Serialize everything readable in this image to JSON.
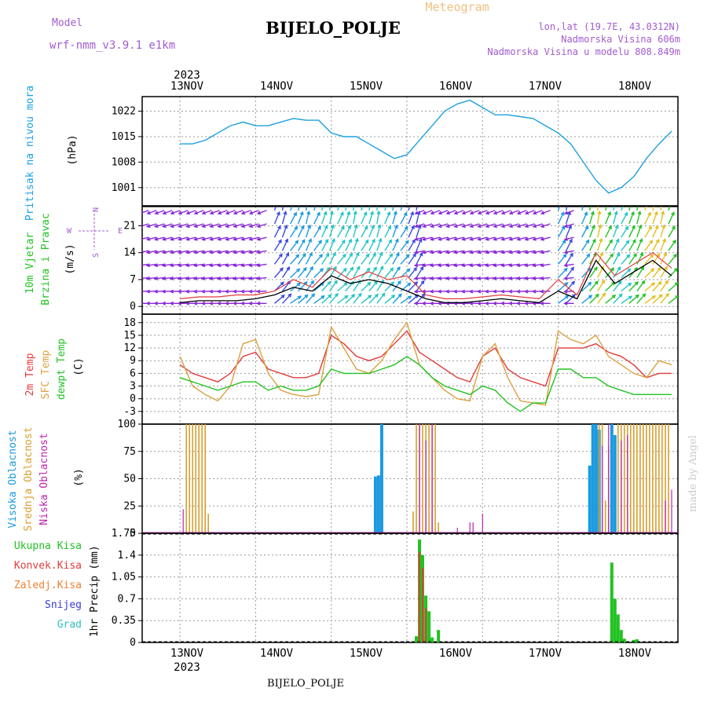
{
  "header": {
    "model_label": "Model",
    "model_name": "wrf-nmm_v3.9.1 e1km",
    "title": "BIJELO_POLJE",
    "kind": "Meteogram",
    "lonlat": "lon,lat (19.7E, 43.0312N)",
    "elevation": "Nadmorska Visina 606m",
    "model_elevation": "Nadmorska Visina u modelu 808.849m",
    "footer_title": "BIJELO_POLJE",
    "watermark": "made by Angel"
  },
  "colors": {
    "model_label": "#a25ccf",
    "title": "#000000",
    "kind": "#f0c080",
    "pressure": "#1ba0e0",
    "temp2m": "#e23b3b",
    "sfc": "#dca040",
    "dew": "#22c222",
    "high_cloud": "#1a9ae0",
    "mid_cloud": "#d8a030",
    "low_cloud": "#c020b0",
    "total_rain": "#22c222",
    "conv_rain": "#e23b3b",
    "frz_rain": "#f08030",
    "snow": "#3a3ae0",
    "graupel": "#30c0c0",
    "wind_purple": "#8a28d8"
  },
  "time_axis": {
    "year": "2023",
    "days": [
      "13NOV",
      "14NOV",
      "15NOV",
      "16NOV",
      "17NOV",
      "18NOV"
    ]
  },
  "chart_data": [
    {
      "type": "line",
      "panel": "pressure",
      "ylabel_main": "Pritisak na nivou mora",
      "unit": "(hPa)",
      "ylim": [
        996,
        1026
      ],
      "yticks": [
        "1001",
        "1008",
        "1015",
        "1022"
      ],
      "x_hours": [
        0,
        4,
        8,
        12,
        16,
        20,
        24,
        28,
        32,
        36,
        40,
        44,
        48,
        52,
        56,
        60,
        64,
        68,
        72,
        76,
        80,
        84,
        88,
        92,
        96,
        100,
        104,
        108,
        112,
        116,
        120,
        124,
        128,
        132,
        136,
        140,
        144,
        148,
        152,
        156
      ],
      "values": [
        1013,
        1013,
        1014,
        1016,
        1018,
        1019,
        1018,
        1018,
        1019,
        1020,
        1019.5,
        1019.5,
        1016,
        1015,
        1015,
        1013,
        1011,
        1009,
        1010,
        1014,
        1018,
        1022,
        1024,
        1025,
        1023,
        1021,
        1021,
        1020.5,
        1020,
        1018,
        1016,
        1013,
        1008,
        1003,
        999.5,
        1001,
        1004,
        1009,
        1013,
        1016.5
      ]
    },
    {
      "type": "vector",
      "panel": "wind",
      "ylabel_main": "10m Vjetar",
      "ylabel_sub": "Brzina i Pravac",
      "unit": "(m/s)",
      "compass": {
        "north": "N",
        "west": "W",
        "east": "E",
        "south": "S"
      },
      "ylim": [
        -2,
        26
      ],
      "yticks": [
        "0",
        "7",
        "14",
        "21"
      ],
      "x_hours": [
        0,
        6,
        12,
        18,
        24,
        30,
        36,
        42,
        48,
        54,
        60,
        66,
        72,
        78,
        84,
        90,
        96,
        102,
        108,
        114,
        120,
        126,
        132,
        138,
        144,
        150,
        156
      ],
      "speed": [
        1,
        1.5,
        1.5,
        1.5,
        2,
        3,
        5,
        4,
        8,
        6,
        7,
        6,
        4,
        2,
        1,
        1,
        1.5,
        2,
        1.5,
        1,
        4,
        2,
        12,
        6,
        9,
        12,
        8
      ],
      "gust": [
        2,
        2.5,
        2.5,
        3,
        3,
        4,
        7,
        5,
        10,
        7,
        9,
        7,
        8,
        3,
        2,
        2,
        2.5,
        3,
        2.5,
        2,
        7,
        3,
        14,
        8,
        11,
        14,
        10
      ]
    },
    {
      "type": "line",
      "panel": "temperature",
      "ylabel_series": [
        "2m Temp",
        "SFC Temp",
        "dewpt Temp"
      ],
      "unit": "(C)",
      "ylim": [
        -6,
        20
      ],
      "yticks": [
        "-3",
        "0",
        "3",
        "6",
        "9",
        "12",
        "15",
        "18"
      ],
      "x_hours": [
        0,
        4,
        8,
        12,
        16,
        20,
        24,
        28,
        32,
        36,
        40,
        44,
        48,
        52,
        56,
        60,
        64,
        68,
        72,
        76,
        80,
        84,
        88,
        92,
        96,
        100,
        104,
        108,
        112,
        116,
        120,
        124,
        128,
        132,
        136,
        140,
        144,
        148,
        152,
        156
      ],
      "series": [
        {
          "name": "2m Temp",
          "values": [
            8,
            6,
            5,
            4,
            6,
            10,
            11,
            7,
            6,
            5,
            5,
            6,
            15,
            13,
            10,
            9,
            10,
            13,
            16,
            11,
            9,
            7,
            5,
            4,
            10,
            12,
            7,
            5,
            4,
            3,
            12,
            12,
            12,
            13,
            11,
            10,
            8,
            5,
            6,
            6
          ]
        },
        {
          "name": "SFC Temp",
          "values": [
            10,
            3,
            1,
            -0.5,
            3,
            13,
            14,
            6,
            2,
            1,
            0.5,
            1,
            17,
            12,
            7,
            6,
            9,
            14,
            18,
            8,
            5,
            2,
            0,
            -0.5,
            10,
            13,
            5,
            -0.5,
            -1,
            -1.5,
            16,
            14,
            13,
            15,
            10,
            8,
            6,
            5,
            9,
            8
          ]
        },
        {
          "name": "dewpt Temp",
          "values": [
            5,
            4,
            3,
            2,
            3,
            4,
            4,
            2,
            3,
            2,
            2,
            3,
            7,
            6,
            6,
            6,
            7,
            8,
            10,
            8,
            5,
            3,
            2,
            1,
            3,
            2,
            -1,
            -3,
            -1,
            -1,
            7,
            7,
            5,
            5,
            3,
            2,
            1,
            1,
            1,
            1
          ]
        }
      ]
    },
    {
      "type": "bar",
      "panel": "clouds",
      "ylabel_series": [
        "Visoka Oblacnost",
        "Srednja Oblacnost",
        "Niska Oblacnost"
      ],
      "unit": "(%)",
      "ylim": [
        0,
        100
      ],
      "yticks": [
        "0",
        "25",
        "50",
        "75",
        "100"
      ],
      "series": [
        {
          "name": "Visoka Oblacnost",
          "x_hours": [
            62,
            63,
            64,
            130,
            131,
            132,
            133,
            137,
            138
          ],
          "values": [
            52,
            53,
            100,
            62,
            100,
            100,
            95,
            100,
            90
          ]
        },
        {
          "name": "Srednja Oblacnost",
          "x_hours": [
            2,
            3,
            4,
            5,
            6,
            7,
            8,
            9,
            74,
            75,
            76,
            77,
            78,
            79,
            80,
            81,
            82,
            133,
            134,
            135,
            136,
            139,
            140,
            141,
            142,
            143,
            144,
            145,
            146,
            147,
            148,
            149,
            150,
            151,
            152,
            153,
            154,
            155
          ],
          "values": [
            100,
            100,
            100,
            100,
            100,
            100,
            100,
            18,
            20,
            100,
            100,
            100,
            100,
            100,
            100,
            100,
            10,
            100,
            100,
            30,
            80,
            100,
            100,
            100,
            100,
            100,
            100,
            100,
            100,
            100,
            100,
            100,
            100,
            100,
            100,
            100,
            100,
            100
          ]
        },
        {
          "name": "Niska Oblacnost",
          "x_hours": [
            1,
            76,
            78,
            80,
            88,
            92,
            93,
            96,
            134,
            136,
            140,
            142,
            154,
            156
          ],
          "values": [
            22,
            100,
            85,
            100,
            5,
            10,
            10,
            18,
            80,
            100,
            85,
            90,
            30,
            40
          ]
        }
      ]
    },
    {
      "type": "bar",
      "panel": "precip",
      "legend": [
        "Ukupna Kisa",
        "Konvek.Kisa",
        "Zaledj.Kisa",
        "Snijeg",
        "Grad"
      ],
      "ylabel_sub": "1hr Precip",
      "unit": "(mm)",
      "ylim": [
        0,
        1.75
      ],
      "yticks": [
        "0",
        "0.35",
        "0.7",
        "1.05",
        "1.4",
        "1.75"
      ],
      "series": [
        {
          "name": "Ukupna Kisa",
          "x_hours": [
            75,
            76,
            77,
            78,
            79,
            80,
            82,
            137,
            138,
            139,
            140,
            141,
            144,
            145
          ],
          "values": [
            0.1,
            1.65,
            1.4,
            0.75,
            0.5,
            0.08,
            0.2,
            1.28,
            0.7,
            0.45,
            0.2,
            0.06,
            0.04,
            0.05
          ]
        },
        {
          "name": "Konvek.Kisa",
          "x_hours": [
            76,
            77,
            78
          ],
          "values": [
            1.45,
            1.2,
            0.55
          ]
        }
      ]
    }
  ]
}
